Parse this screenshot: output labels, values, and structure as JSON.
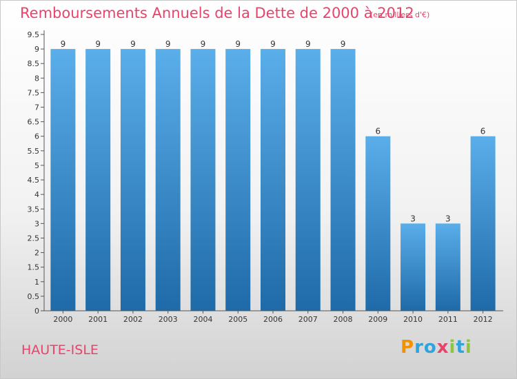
{
  "title": "Remboursements Annuels de la Dette de 2000 à 2012",
  "subtitle": "(en milliers d'€)",
  "commune": "HAUTE-ISLE",
  "logo": "Proxiti",
  "colors": {
    "accent": "#e8436a",
    "bar_top": "#5aaeea",
    "bar_bottom": "#1f6aa8"
  },
  "chart_data": {
    "type": "bar",
    "title": "Remboursements Annuels de la Dette de 2000 à 2012",
    "subtitle": "(en milliers d'€)",
    "categories": [
      "2000",
      "2001",
      "2002",
      "2003",
      "2004",
      "2005",
      "2006",
      "2007",
      "2008",
      "2009",
      "2010",
      "2011",
      "2012"
    ],
    "values": [
      9,
      9,
      9,
      9,
      9,
      9,
      9,
      9,
      9,
      6,
      3,
      3,
      6
    ],
    "data_labels": [
      "9",
      "9",
      "9",
      "9",
      "9",
      "9",
      "9",
      "9",
      "9",
      "6",
      "3",
      "3",
      "6"
    ],
    "y_ticks": [
      "0",
      "0.5",
      "1",
      "1.5",
      "2",
      "2.5",
      "3",
      "3.5",
      "4",
      "4.5",
      "5",
      "5.5",
      "6",
      "6.5",
      "7",
      "7.5",
      "8",
      "8.5",
      "9",
      "9.5"
    ],
    "ylim": [
      0,
      9.5
    ],
    "xlabel": "",
    "ylabel": "",
    "grid": false,
    "legend": "none"
  }
}
